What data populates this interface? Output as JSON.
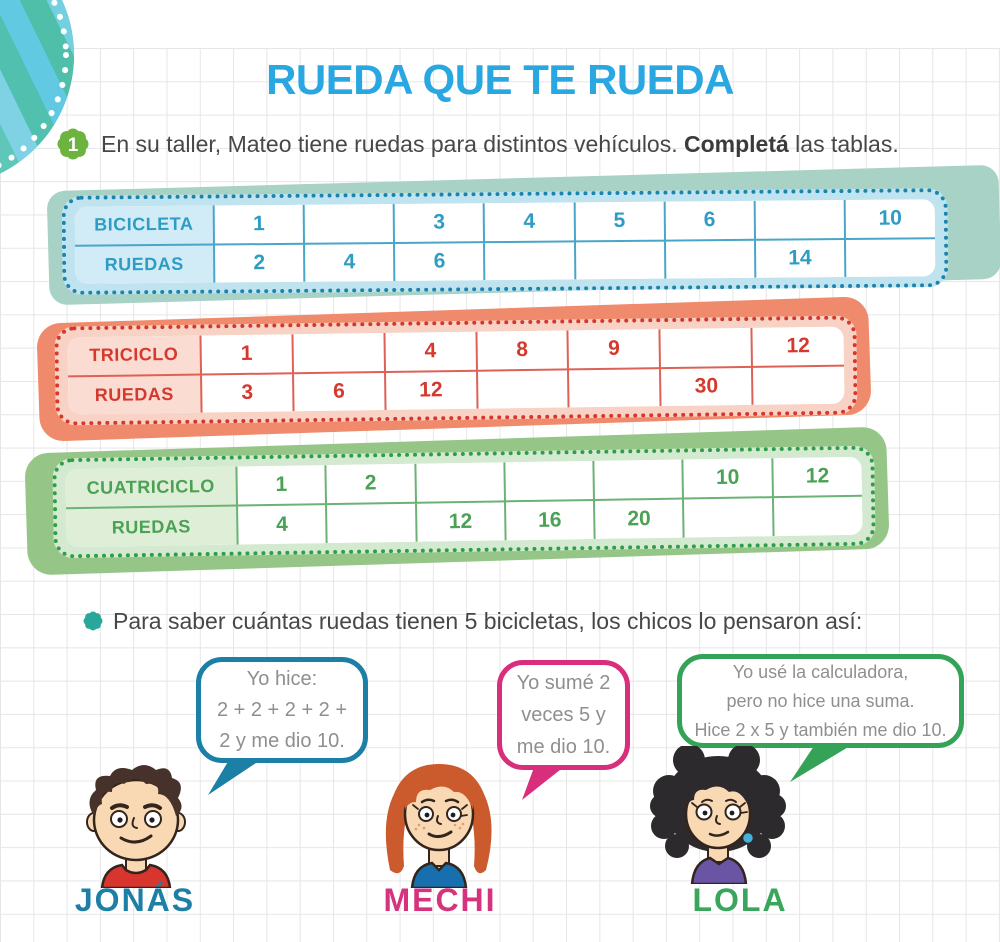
{
  "page": {
    "title": "RUEDA QUE TE RUEDA"
  },
  "exercise": {
    "number": "1",
    "text": "En su taller, Mateo tiene ruedas para distintos vehículos. ",
    "text_bold": "Completá",
    "text_end": " las tablas."
  },
  "prompt": {
    "text": "Para saber cuántas ruedas tienen 5 bicicletas, los chicos lo pensaron así:"
  },
  "tables": [
    {
      "id": "bicicleta",
      "accent": "#2e9cc3",
      "rows": [
        {
          "header": "BICICLETA",
          "cells": [
            "1",
            "",
            "3",
            "4",
            "5",
            "6",
            "",
            "10"
          ]
        },
        {
          "header": "RUEDAS",
          "cells": [
            "2",
            "4",
            "6",
            "",
            "",
            "",
            "14",
            ""
          ]
        }
      ]
    },
    {
      "id": "triciclo",
      "accent": "#d5392e",
      "rows": [
        {
          "header": "TRICICLO",
          "cells": [
            "1",
            "",
            "4",
            "8",
            "9",
            "",
            "12"
          ]
        },
        {
          "header": "RUEDAS",
          "cells": [
            "3",
            "6",
            "12",
            "",
            "",
            "30",
            ""
          ]
        }
      ]
    },
    {
      "id": "cuatriciclo",
      "accent": "#4ba155",
      "rows": [
        {
          "header": "CUATRICICLO",
          "cells": [
            "1",
            "2",
            "",
            "",
            "",
            "10",
            "12"
          ]
        },
        {
          "header": "RUEDAS",
          "cells": [
            "4",
            "",
            "12",
            "16",
            "20",
            "",
            ""
          ]
        }
      ]
    }
  ],
  "bubbles": [
    {
      "speaker": "JONÁS",
      "color": "#1c7fa6",
      "lines": [
        "Yo hice:",
        "2 + 2 + 2 + 2 +",
        "2 y me dio 10."
      ]
    },
    {
      "speaker": "MECHI",
      "color": "#d82e7c",
      "lines": [
        "Yo sumé 2",
        "veces 5 y",
        "me dio 10."
      ]
    },
    {
      "speaker": "LOLA",
      "color": "#35a357",
      "lines": [
        "Yo usé la calculadora,",
        "pero no hice una suma.",
        "Hice 2 x 5 y también me dio 10."
      ]
    }
  ],
  "children": [
    {
      "name": "JONÁS",
      "name_color": "#1d7ea6"
    },
    {
      "name": "MECHI",
      "name_color": "#d6337e"
    },
    {
      "name": "LOLA",
      "name_color": "#3aa65c"
    }
  ],
  "colors": {
    "title": "#29a7e1",
    "body_text": "#474747",
    "bubble_text": "#8f8f8f",
    "grid_line": "#e6e6e6",
    "table_blue_dots": "#1b84ad",
    "table_blue_shadow": "#a7d2c5",
    "table_red_dots": "#d6372c",
    "table_red_shadow": "#f08a6c",
    "table_green_dots": "#2f9e4a",
    "table_green_shadow": "#95c687"
  }
}
